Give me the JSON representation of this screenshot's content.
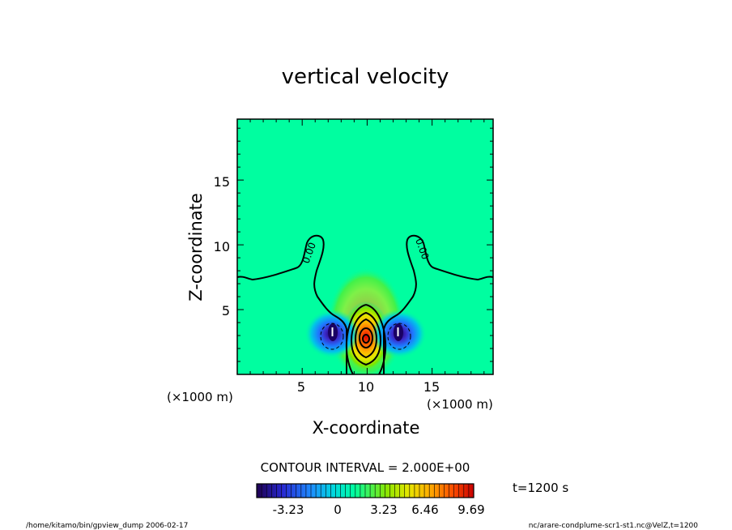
{
  "chart_data": {
    "type": "contour",
    "title": "vertical velocity",
    "xlabel": "X-coordinate",
    "ylabel": "Z-coordinate",
    "x_unit": "(×1000 m)",
    "y_unit": "(×1000 m)",
    "xlim": [
      0,
      19.7
    ],
    "ylim": [
      0,
      19.7
    ],
    "x_ticks": [
      "5",
      "10",
      "15"
    ],
    "y_ticks": [
      "5",
      "10",
      "15"
    ],
    "contour_interval_label": "CONTOUR INTERVAL = 2.000E+00",
    "contour_labels": [
      "0.00",
      "0.00"
    ],
    "colorbar": {
      "ticks": [
        "-3.23",
        "0",
        "3.23",
        "6.46",
        "9.69"
      ],
      "range": [
        -6.0,
        10.5
      ]
    },
    "fields": [
      {
        "name": "updraft core",
        "x": 10.0,
        "z": 2.7,
        "peak": 10.0
      },
      {
        "name": "left downdraft",
        "x": 7.5,
        "z": 3.2,
        "peak": -5.5
      },
      {
        "name": "right downdraft",
        "x": 12.5,
        "z": 3.2,
        "peak": -5.5
      }
    ],
    "time_label": "t=1200 s",
    "footer_left": "/home/kitamo/bin/gpview_dump  2006-02-17",
    "footer_right": "nc/arare-condplume-scr1-st1.nc@VelZ,t=1200"
  },
  "colors": {
    "background": "#00fea0",
    "frame": "#000000"
  }
}
